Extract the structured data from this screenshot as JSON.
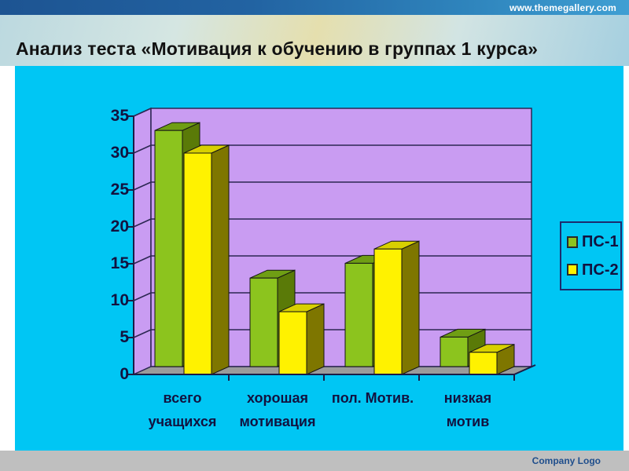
{
  "header": {
    "website": "www.themegallery.com",
    "title": "Анализ теста «Мотивация к обучению в группах 1 курса»"
  },
  "footer": {
    "company": "Company Logo"
  },
  "chart_data": {
    "type": "bar",
    "style": "3d-clustered",
    "title": "",
    "xlabel": "",
    "ylabel": "",
    "categories": [
      "всего учащихся",
      "хорошая мотивация",
      "пол. Мотив.",
      "низкая мотив"
    ],
    "category_lines": [
      [
        "всего",
        "учащихся"
      ],
      [
        "хорошая",
        "мотивация"
      ],
      [
        "пол. Мотив.",
        ""
      ],
      [
        "низкая",
        "мотив"
      ]
    ],
    "series": [
      {
        "name": "ПС-1",
        "color": "#8cc41e",
        "top_color": "#6f9e14",
        "side_color": "#5a7a08",
        "values": [
          32,
          12,
          14,
          4
        ]
      },
      {
        "name": "ПС-2",
        "color": "#fff200",
        "top_color": "#d8d000",
        "side_color": "#7e7600",
        "values": [
          30,
          8.5,
          17,
          3
        ]
      }
    ],
    "yticks": [
      0,
      5,
      10,
      15,
      20,
      25,
      30,
      35
    ],
    "ylim": [
      0,
      35
    ],
    "grid": true,
    "legend_position": "right",
    "colors": {
      "panel_background": "#00c6f4",
      "wall": "#c99cf2",
      "floor": "#9b9b9b",
      "gridline": "#2c2753",
      "axis": "#1c1c46",
      "bar_outline": "#141414",
      "text": "#12123f"
    }
  }
}
